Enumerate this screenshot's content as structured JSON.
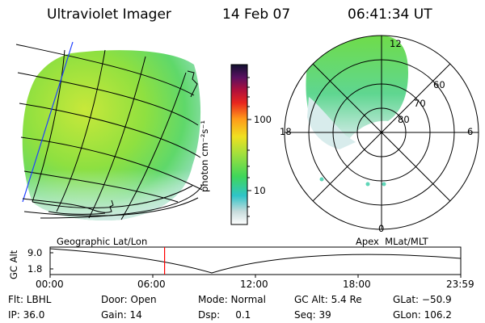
{
  "header": {
    "instrument": "Ultraviolet Imager",
    "date": "14 Feb 07",
    "time": "06:41:34 UT"
  },
  "colorbar": {
    "unit_label": "photon cm⁻²s⁻¹",
    "ticks": [
      "100",
      "10"
    ]
  },
  "polar": {
    "mlt_labels": [
      "12",
      "18",
      "6",
      "0"
    ],
    "lat_labels": [
      "60",
      "70",
      "80"
    ]
  },
  "altitude_plot": {
    "left_title": "Geographic Lat/Lon",
    "right_title": "Apex  MLat/MLT",
    "axis_label": "GC Alt",
    "y_ticks": [
      "9.0",
      "1.8"
    ],
    "x_ticks": [
      "00:00",
      "06:00",
      "12:00",
      "18:00",
      "23:59"
    ],
    "current_time_hours": 6.69,
    "marker_color": "#ff0000"
  },
  "status": {
    "row1": [
      {
        "key": "flt",
        "text": "Flt: LBHL"
      },
      {
        "key": "door",
        "text": "Door: Open"
      },
      {
        "key": "mode",
        "text": "Mode: Normal"
      },
      {
        "key": "gcalt",
        "text": "GC Alt: 5.4 Re"
      },
      {
        "key": "glat",
        "text": "GLat: −50.9"
      }
    ],
    "row2": [
      {
        "key": "ip",
        "text": "IP: 36.0"
      },
      {
        "key": "gain",
        "text": "Gain: 14"
      },
      {
        "key": "dsp",
        "text": "Dsp:     0.1"
      },
      {
        "key": "seq",
        "text": "Seq: 39"
      },
      {
        "key": "glon",
        "text": "GLon: 106.2"
      }
    ]
  },
  "colors": {
    "aurora_green": "#6fdc4a",
    "aurora_yellow": "#c8e83a",
    "aurora_cyan": "#5fd6b8",
    "aurora_pale": "#d8ecec"
  }
}
